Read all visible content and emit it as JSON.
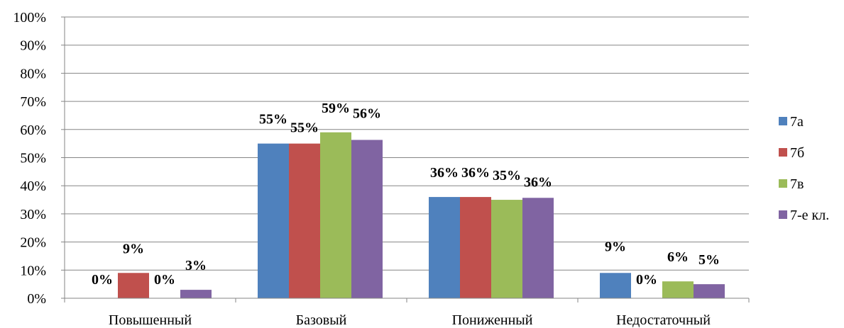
{
  "chart_data": {
    "type": "bar",
    "title": "",
    "xlabel": "",
    "ylabel": "",
    "ylim": [
      0,
      100
    ],
    "y_tick_labels": [
      "0%",
      "10%",
      "20%",
      "30%",
      "40%",
      "50%",
      "60%",
      "70%",
      "80%",
      "90%",
      "100%"
    ],
    "categories": [
      "Повышенный",
      "Базовый",
      "Пониженный",
      "Недостаточный"
    ],
    "series": [
      {
        "name": "7а",
        "color": "#4F81BD",
        "values": [
          0,
          55,
          36,
          9
        ],
        "labels": [
          "0%",
          "55%",
          "36%",
          "9%"
        ]
      },
      {
        "name": "7б",
        "color": "#C0504D",
        "values": [
          9,
          55,
          36,
          0
        ],
        "labels": [
          "9%",
          "55%",
          "36%",
          "0%"
        ]
      },
      {
        "name": "7в",
        "color": "#9BBB59",
        "values": [
          0,
          59,
          35,
          6
        ],
        "labels": [
          "0%",
          "59%",
          "35%",
          "6%"
        ]
      },
      {
        "name": "7-е кл.",
        "color": "#8064A2",
        "values": [
          3,
          56.3,
          35.7,
          5
        ],
        "labels": [
          "3%",
          "56%",
          "36%",
          "5%"
        ]
      }
    ],
    "grid": true,
    "legend_position": "right"
  }
}
